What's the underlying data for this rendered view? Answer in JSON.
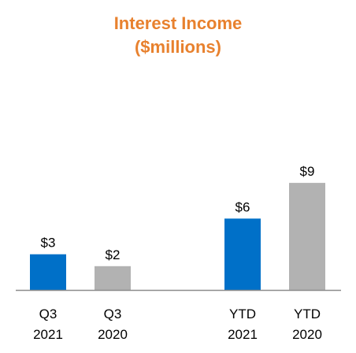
{
  "title_line1": "Interest Income",
  "title_line2": "($millions)",
  "colors": {
    "title": "#E8812E",
    "highlight": "#0070C8",
    "prior": "#B2B2B2",
    "axis": "#8C8C8C"
  },
  "chart_data": {
    "type": "bar",
    "title": "Interest Income ($millions)",
    "categories": [
      {
        "line1": "Q3",
        "line2": "2021",
        "value": 3,
        "label": "$3",
        "color": "#0070C8"
      },
      {
        "line1": "Q3",
        "line2": "2020",
        "value": 2,
        "label": "$2",
        "color": "#B2B2B2"
      },
      {
        "line1": "YTD",
        "line2": "2021",
        "value": 6,
        "label": "$6",
        "color": "#0070C8"
      },
      {
        "line1": "YTD",
        "line2": "2020",
        "value": 9,
        "label": "$9",
        "color": "#B2B2B2"
      }
    ],
    "ylim": [
      0,
      10
    ],
    "grid": false,
    "legend": "none"
  }
}
